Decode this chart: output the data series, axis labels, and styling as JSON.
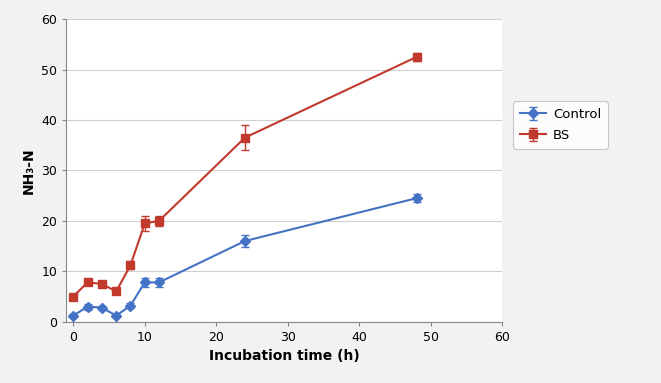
{
  "control_x": [
    0,
    2,
    4,
    6,
    8,
    10,
    12,
    24,
    48
  ],
  "control_y": [
    1.2,
    3.0,
    2.8,
    1.2,
    3.2,
    7.8,
    7.8,
    16.0,
    24.5
  ],
  "control_yerr": [
    0.3,
    0.6,
    0.4,
    0.3,
    0.5,
    0.9,
    0.9,
    1.2,
    0.8
  ],
  "bs_x": [
    0,
    2,
    4,
    6,
    8,
    10,
    12,
    24,
    48
  ],
  "bs_y": [
    5.0,
    7.8,
    7.5,
    6.0,
    11.2,
    19.5,
    20.0,
    36.5,
    52.5
  ],
  "bs_yerr": [
    0.5,
    0.6,
    0.6,
    0.5,
    0.8,
    1.5,
    1.0,
    2.5,
    0.8
  ],
  "control_color": "#4472C4",
  "bs_color": "#C0392B",
  "xlabel": "Incubation time (h)",
  "ylabel": "NH₃-N",
  "xlim": [
    -1,
    60
  ],
  "ylim": [
    0,
    60
  ],
  "xticks": [
    0,
    10,
    20,
    30,
    40,
    50,
    60
  ],
  "yticks": [
    0,
    10,
    20,
    30,
    40,
    50,
    60
  ],
  "legend_labels": [
    "Control",
    "BS"
  ],
  "background_color": "#f2f2f2",
  "plot_bg_color": "#ffffff",
  "grid_color": "#d0d0d0"
}
